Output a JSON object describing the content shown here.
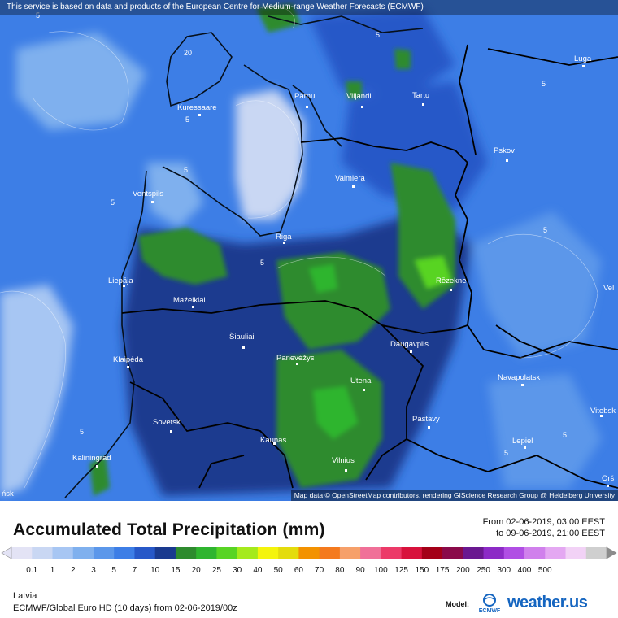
{
  "banner": {
    "text": "This service is based on data and products of the European Centre for Medium-range Weather Forecasts (ECMWF)"
  },
  "attribution": {
    "text": "Map data © OpenStreetMap contributors, rendering GIScience Research Group @ Heidelberg University"
  },
  "cities": [
    "Luga",
    "Pärnu",
    "Viljandi",
    "Tartu",
    "Kuressaare",
    "Pskov",
    "Valmiera",
    "Ventspils",
    "Riga",
    "Liepāja",
    "Rēzekne",
    "Mažeikiai",
    "Šiauliai",
    "Panevėžys",
    "Daugavpils",
    "Klaipėda",
    "Utena",
    "Navapolatsk",
    "Vitebsk",
    "Sovetsk",
    "Pastavy",
    "Kaunas",
    "Lepiel",
    "Kaliningrad",
    "Vilnius",
    "Orš",
    "ńsk",
    "Vel"
  ],
  "contour_labels": [
    "5",
    "5",
    "5",
    "5",
    "5",
    "5",
    "5",
    "5",
    "5",
    "5",
    "5",
    "20"
  ],
  "title": "Accumulated Total Precipitation (mm)",
  "period": {
    "from": "From 02-06-2019, 03:00 EEST",
    "to": "to 09-06-2019, 21:00 EEST"
  },
  "scale": {
    "labels": [
      "0.1",
      "1",
      "2",
      "3",
      "5",
      "7",
      "10",
      "15",
      "20",
      "25",
      "30",
      "40",
      "50",
      "60",
      "70",
      "80",
      "90",
      "100",
      "125",
      "150",
      "175",
      "200",
      "250",
      "300",
      "400",
      "500"
    ],
    "colors": [
      "#e3e3f5",
      "#c9d7f3",
      "#a7c6f3",
      "#7fb0ee",
      "#5b97ea",
      "#3d7ee6",
      "#2758c8",
      "#1a3a8f",
      "#2e8b2e",
      "#2fb52f",
      "#58d424",
      "#a5ea1c",
      "#f4f40c",
      "#e4dc0c",
      "#f39200",
      "#f47a1e",
      "#f6a06a",
      "#f07098",
      "#ec3a68",
      "#d8123c",
      "#a40018",
      "#8a0a4a",
      "#6a1890",
      "#8c2ac6",
      "#b04ee4",
      "#d080ec",
      "#e4a8f2",
      "#f2d2f6",
      "#cfcfcf"
    ]
  },
  "region": "Latvia",
  "model_run": "ECMWF/Global Euro HD (10 days) from 02-06-2019/00z",
  "model_tag": "Model:",
  "ecmwf_text": "ECMWF",
  "brand": "weather.us",
  "brand_ext": "us"
}
